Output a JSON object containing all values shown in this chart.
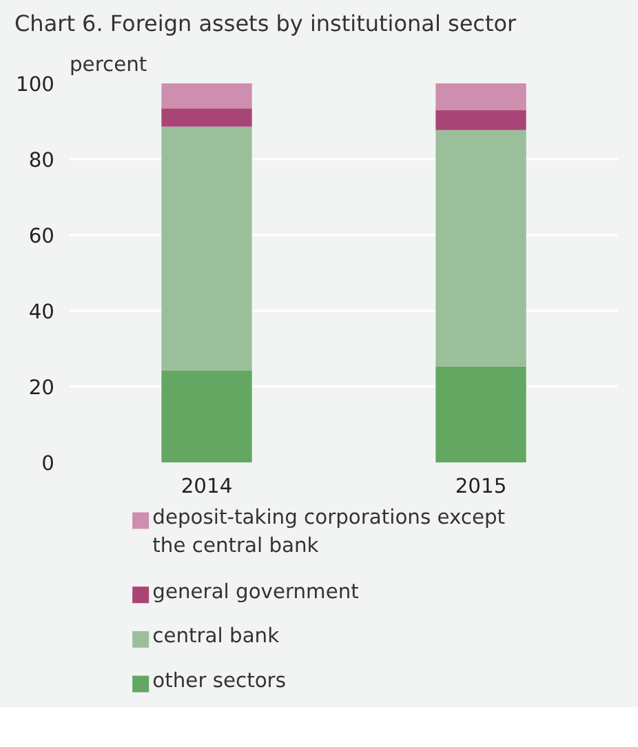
{
  "chart_data": {
    "type": "bar",
    "title": "Chart 6. Foreign assets by institutional sector",
    "ylabel": "percent",
    "categories": [
      "2014",
      "2015"
    ],
    "stacked": true,
    "series": [
      {
        "name": "other sectors",
        "color": "#63a763",
        "values": [
          24.2,
          25.3
        ]
      },
      {
        "name": "central bank",
        "color": "#9bbf9b",
        "values": [
          64.4,
          62.4
        ]
      },
      {
        "name": "general government",
        "color": "#a94576",
        "values": [
          4.8,
          5.3
        ]
      },
      {
        "name": "deposit-taking corporations except the central bank",
        "color": "#ce8eae",
        "values": [
          6.6,
          7.0
        ]
      }
    ],
    "ylim": [
      0,
      100
    ],
    "yticks": [
      0,
      20,
      40,
      60,
      80,
      100
    ],
    "grid": "y",
    "legend": "bottom"
  }
}
